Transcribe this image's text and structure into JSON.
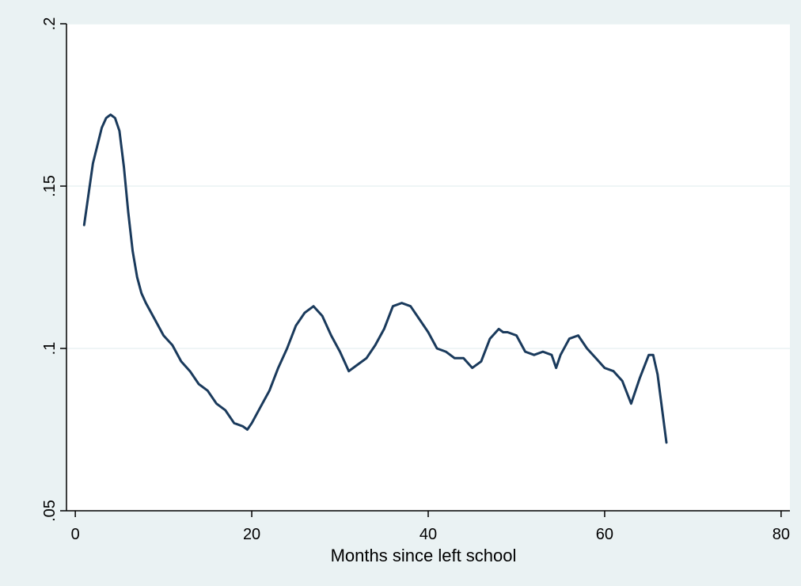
{
  "chart_data": {
    "type": "line",
    "title": "",
    "xlabel": "Months since left school",
    "ylabel": "",
    "xlim": [
      -1,
      81
    ],
    "ylim": [
      0.05,
      0.2
    ],
    "xticks": [
      {
        "value": 0,
        "label": "0"
      },
      {
        "value": 20,
        "label": "20"
      },
      {
        "value": 40,
        "label": "40"
      },
      {
        "value": 60,
        "label": "60"
      },
      {
        "value": 80,
        "label": "80"
      }
    ],
    "yticks": [
      {
        "value": 0.05,
        "label": ".05"
      },
      {
        "value": 0.1,
        "label": ".1"
      },
      {
        "value": 0.15,
        "label": ".15"
      },
      {
        "value": 0.2,
        "label": ".2"
      }
    ],
    "grid": "horizontal",
    "legend": "none",
    "colors": {
      "line": "#1a3a5c",
      "plot_background": "#ffffff",
      "outer_background": "#eaf2f3",
      "grid": "#eaf2f3"
    },
    "series": [
      {
        "x": [
          1,
          2,
          3,
          3.5,
          4,
          4.5,
          5,
          5.5,
          6,
          6.5,
          7,
          7.5,
          8,
          9,
          10,
          11,
          12,
          13,
          14,
          15,
          16,
          17,
          18,
          19,
          19.5,
          20,
          21,
          22,
          23,
          24,
          25,
          26,
          27,
          28,
          29,
          30,
          30.5,
          31,
          32,
          33,
          34,
          35,
          36,
          37,
          38,
          39,
          40,
          41,
          42,
          43,
          44,
          45,
          46,
          47,
          48,
          48.5,
          49,
          50,
          51,
          52,
          53,
          54,
          54.5,
          55,
          56,
          57,
          58,
          59,
          60,
          61,
          62,
          63,
          64,
          65,
          65.5,
          66,
          67
        ],
        "y": [
          0.138,
          0.157,
          0.168,
          0.171,
          0.172,
          0.171,
          0.167,
          0.156,
          0.142,
          0.13,
          0.122,
          0.117,
          0.114,
          0.109,
          0.104,
          0.101,
          0.096,
          0.093,
          0.089,
          0.087,
          0.083,
          0.081,
          0.077,
          0.076,
          0.075,
          0.077,
          0.082,
          0.087,
          0.094,
          0.1,
          0.107,
          0.111,
          0.113,
          0.11,
          0.104,
          0.099,
          0.096,
          0.093,
          0.095,
          0.097,
          0.101,
          0.106,
          0.113,
          0.114,
          0.113,
          0.109,
          0.105,
          0.1,
          0.099,
          0.097,
          0.097,
          0.094,
          0.096,
          0.103,
          0.106,
          0.105,
          0.105,
          0.104,
          0.099,
          0.098,
          0.099,
          0.098,
          0.094,
          0.098,
          0.103,
          0.104,
          0.1,
          0.097,
          0.094,
          0.093,
          0.09,
          0.083,
          0.091,
          0.098,
          0.098,
          0.092,
          0.071
        ]
      }
    ]
  }
}
